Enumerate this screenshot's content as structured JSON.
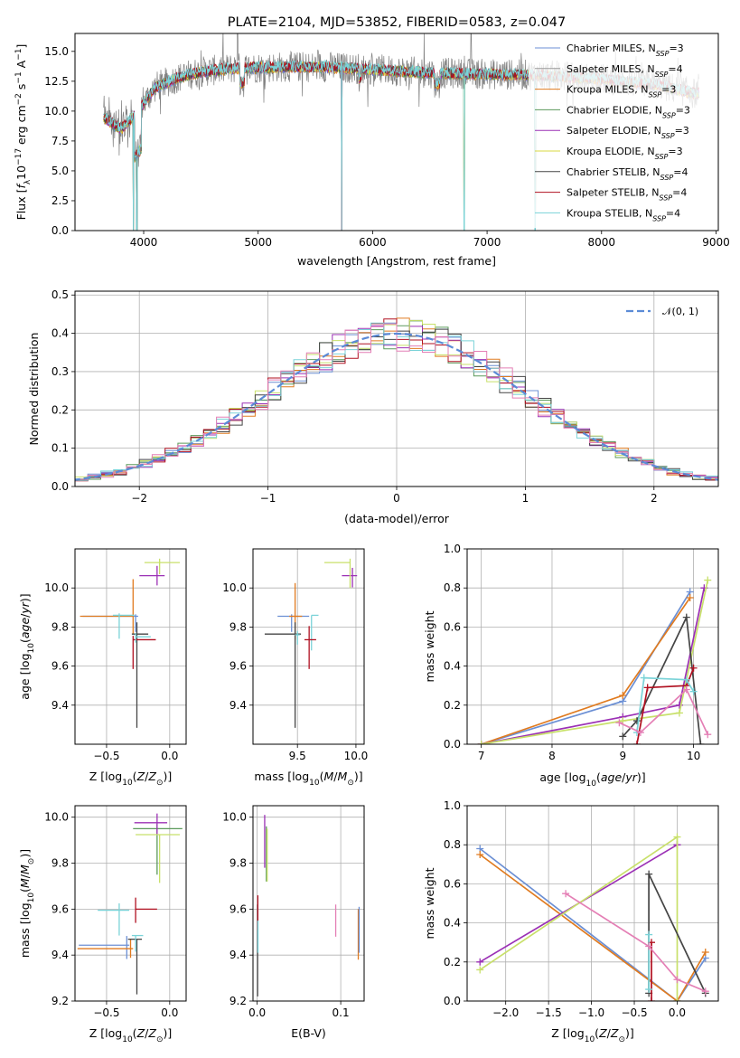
{
  "title": "PLATE=2104, MJD=53852, FIBERID=0583, z=0.047",
  "model_names": [
    "Chabrier MILES",
    "Salpeter MILES",
    "Kroupa MILES",
    "Chabrier ELODIE",
    "Salpeter ELODIE",
    "Kroupa ELODIE",
    "Chabrier STELIB",
    "Salpeter STELIB",
    "Kroupa STELIB"
  ],
  "colors": [
    "#6b8fd4",
    "#999999",
    "#e07b20",
    "#5b9a5b",
    "#9b30b5",
    "#d8d840",
    "#454545",
    "#b01020",
    "#7ad3d8"
  ],
  "hist_colors": [
    "#6b8fd4",
    "#e07b20",
    "#5b9a5b",
    "#9b30b5",
    "#c8e06a",
    "#454545",
    "#b01020",
    "#7ad3d8",
    "#e47fb5"
  ],
  "chart_data": [
    {
      "type": "line",
      "name": "spectrum",
      "xlabel": "wavelength [Angstrom, rest frame]",
      "ylabel": "Flux [f_λ 10^-17 erg cm^-2 s^-1 A^-1]",
      "xlim": [
        3400,
        9020
      ],
      "ylim": [
        0,
        16.5
      ],
      "xticks": [
        4000,
        5000,
        6000,
        7000,
        8000,
        9000
      ],
      "yticks": [
        "0.0",
        "2.5",
        "5.0",
        "7.5",
        "10.0",
        "12.5",
        "15.0"
      ],
      "legend_position": "top-right",
      "legend": [
        {
          "pre": "Chabrier MILES, N",
          "sub": "SSP",
          "post": "=3"
        },
        {
          "pre": "Salpeter MILES, N",
          "sub": "SSP",
          "post": "=4"
        },
        {
          "pre": "Kroupa MILES, N",
          "sub": "SSP",
          "post": "=3"
        },
        {
          "pre": "Chabrier ELODIE, N",
          "sub": "SSP",
          "post": "=3"
        },
        {
          "pre": "Salpeter ELODIE, N",
          "sub": "SSP",
          "post": "=3"
        },
        {
          "pre": "Kroupa ELODIE, N",
          "sub": "SSP",
          "post": "=3"
        },
        {
          "pre": "Chabrier STELIB, N",
          "sub": "SSP",
          "post": "=4"
        },
        {
          "pre": "Salpeter STELIB, N",
          "sub": "SSP",
          "post": "=4"
        },
        {
          "pre": "Kroupa STELIB, N",
          "sub": "SSP",
          "post": "=4"
        }
      ],
      "approx_continuum": {
        "x": [
          3650,
          3800,
          3950,
          4100,
          4300,
          4500,
          4800,
          5200,
          5600,
          6000,
          6500,
          7000,
          7500,
          8000,
          8500,
          8800
        ],
        "y": [
          9.5,
          8.5,
          10.0,
          12.0,
          12.8,
          13.3,
          13.6,
          13.7,
          13.7,
          13.5,
          13.2,
          13.1,
          13.0,
          12.7,
          12.2,
          11.5
        ]
      },
      "dropouts": [
        3910,
        3940,
        5730,
        6800,
        7420
      ]
    },
    {
      "type": "line",
      "name": "residual-distribution",
      "xlabel": "(data-model)/error",
      "ylabel": "Normed distribution",
      "xlim": [
        -2.5,
        2.5
      ],
      "ylim": [
        0,
        0.51
      ],
      "xticks": [
        "−2",
        "−1",
        "0",
        "1",
        "2"
      ],
      "yticks": [
        "0.0",
        "0.1",
        "0.2",
        "0.3",
        "0.4",
        "0.5"
      ],
      "legend": "𝒩(0, 1)",
      "legend_position": "top-right",
      "bin_width": 0.1,
      "grid": true
    },
    {
      "type": "scatter",
      "name": "age-vs-Z",
      "xlabel": "Z [log10(Z/Z⊙)]",
      "ylabel": "age [log10(age/yr)]",
      "xlim": [
        -0.75,
        0.13
      ],
      "ylim": [
        9.2,
        10.2
      ],
      "xticks": [
        "−0.5",
        "0.0"
      ],
      "yticks": [
        "9.4",
        "9.6",
        "9.8",
        "10.0"
      ],
      "grid": true,
      "crosses": [
        {
          "x": -0.27,
          "y": 9.855,
          "xl": 0.42,
          "xh": 0.02,
          "yl": 0.08,
          "yh": 0.01,
          "c": 0
        },
        {
          "x": -0.29,
          "y": 9.855,
          "xl": 0.42,
          "xh": 0.0,
          "yl": 0.09,
          "yh": 0.19,
          "c": 2
        },
        {
          "x": -0.4,
          "y": 9.86,
          "xl": 0.05,
          "xh": 0.12,
          "yl": 0.12,
          "yh": 0.01,
          "c": 8
        },
        {
          "x": -0.1,
          "y": 10.063,
          "xl": 0.14,
          "xh": 0.06,
          "yl": 0.05,
          "yh": 0.05,
          "c": 4
        },
        {
          "x": -0.08,
          "y": 10.13,
          "xl": 0.12,
          "xh": 0.16,
          "yl": 0.06,
          "yh": 0.02,
          "c": 5
        },
        {
          "x": -0.26,
          "y": 9.764,
          "xl": 0.04,
          "xh": 0.09,
          "yl": 0.48,
          "yh": 0.06,
          "c": 6
        },
        {
          "x": -0.29,
          "y": 9.735,
          "xl": 0.0,
          "xh": 0.18,
          "yl": 0.15,
          "yh": 0.02,
          "c": 7
        },
        {
          "x": -0.27,
          "y": 9.75,
          "xl": 0.0,
          "xh": 0.12,
          "yl": 0.03,
          "yh": 0.02,
          "c": 8
        }
      ]
    },
    {
      "type": "scatter",
      "name": "age-vs-mass",
      "xlabel": "mass [log10(M/M⊙)]",
      "ylabel": "",
      "xlim": [
        9.12,
        10.07
      ],
      "ylim": [
        9.2,
        10.2
      ],
      "xticks": [
        "9.5",
        "10.0"
      ],
      "yticks": [
        "9.4",
        "9.6",
        "9.8",
        "10.0"
      ],
      "grid": true,
      "crosses": [
        {
          "x": 9.45,
          "y": 9.855,
          "xl": 0.12,
          "xh": 0.15,
          "yl": 0.08,
          "yh": 0.01,
          "c": 0
        },
        {
          "x": 9.48,
          "y": 9.855,
          "xl": 0.05,
          "xh": 0.06,
          "yl": 0.12,
          "yh": 0.17,
          "c": 2
        },
        {
          "x": 9.62,
          "y": 9.86,
          "xl": 0.0,
          "xh": 0.06,
          "yl": 0.18,
          "yh": 0.0,
          "c": 8
        },
        {
          "x": 9.97,
          "y": 10.063,
          "xl": 0.09,
          "xh": 0.04,
          "yl": 0.06,
          "yh": 0.04,
          "c": 4
        },
        {
          "x": 9.95,
          "y": 10.13,
          "xl": 0.22,
          "xh": 0.0,
          "yl": 0.13,
          "yh": 0.02,
          "c": 5
        },
        {
          "x": 9.48,
          "y": 9.764,
          "xl": 0.26,
          "xh": 0.05,
          "yl": 0.48,
          "yh": 0.06,
          "c": 6
        },
        {
          "x": 9.6,
          "y": 9.735,
          "xl": 0.04,
          "xh": 0.06,
          "yl": 0.15,
          "yh": 0.07,
          "c": 7
        },
        {
          "x": 9.5,
          "y": 9.76,
          "xl": 0.02,
          "xh": 0.02,
          "yl": 0.05,
          "yh": 0.02,
          "c": 8
        }
      ]
    },
    {
      "type": "line",
      "name": "mass-weight-vs-age",
      "xlabel": "age [log10(age/yr)]",
      "ylabel": "mass weight",
      "xlim": [
        6.8,
        10.35
      ],
      "ylim": [
        0,
        1.0
      ],
      "xticks": [
        "7",
        "8",
        "9",
        "10"
      ],
      "yticks": [
        "0.0",
        "0.2",
        "0.4",
        "0.6",
        "0.8",
        "1.0"
      ],
      "grid": true,
      "series": [
        {
          "c": 0,
          "x": [
            7.0,
            9.0,
            9.95
          ],
          "y": [
            0.0,
            0.22,
            0.78
          ]
        },
        {
          "c": 2,
          "x": [
            7.0,
            9.0,
            9.95
          ],
          "y": [
            0.0,
            0.25,
            0.75
          ]
        },
        {
          "c": 4,
          "x": [
            7.0,
            9.0,
            9.8,
            10.15
          ],
          "y": [
            0.0,
            0.14,
            0.2,
            0.8
          ]
        },
        {
          "c": 5,
          "x": [
            7.0,
            9.0,
            9.8,
            10.2
          ],
          "y": [
            0.0,
            0.12,
            0.16,
            0.84
          ]
        },
        {
          "c": 6,
          "x": [
            9.0,
            9.2,
            9.9,
            10.1
          ],
          "y": [
            0.04,
            0.12,
            0.65,
            0.0
          ]
        },
        {
          "c": 7,
          "x": [
            9.2,
            9.35,
            9.9,
            10.0
          ],
          "y": [
            0.0,
            0.29,
            0.3,
            0.39
          ]
        },
        {
          "c": 8,
          "x": [
            9.2,
            9.3,
            9.9,
            10.0
          ],
          "y": [
            0.06,
            0.34,
            0.33,
            0.27
          ]
        },
        {
          "c": 9,
          "x": [
            8.95,
            9.25,
            9.9,
            10.2
          ],
          "y": [
            0.11,
            0.06,
            0.28,
            0.05
          ]
        }
      ]
    },
    {
      "type": "scatter",
      "name": "mass-vs-Z",
      "xlabel": "Z [log10(Z/Z⊙)]",
      "ylabel": "mass [log10(M/M⊙)]",
      "xlim": [
        -0.75,
        0.13
      ],
      "ylim": [
        9.2,
        10.05
      ],
      "xticks": [
        "−0.5",
        "0.0"
      ],
      "yticks": [
        "9.2",
        "9.4",
        "9.6",
        "9.8",
        "10.0"
      ],
      "grid": true,
      "crosses": [
        {
          "x": -0.34,
          "y": 9.443,
          "xl": 0.38,
          "xh": 0.02,
          "yl": 0.06,
          "yh": 0.04,
          "c": 0
        },
        {
          "x": -0.31,
          "y": 9.428,
          "xl": 0.42,
          "xh": 0.02,
          "yl": 0.04,
          "yh": 0.04,
          "c": 2
        },
        {
          "x": -0.1,
          "y": 9.95,
          "xl": 0.19,
          "xh": 0.2,
          "yl": 0.2,
          "yh": 0.02,
          "c": 3
        },
        {
          "x": -0.1,
          "y": 9.976,
          "xl": 0.18,
          "xh": 0.08,
          "yl": 0.05,
          "yh": 0.04,
          "c": 4
        },
        {
          "x": -0.08,
          "y": 9.924,
          "xl": 0.19,
          "xh": 0.16,
          "yl": 0.21,
          "yh": 0.0,
          "c": 5
        },
        {
          "x": -0.26,
          "y": 9.469,
          "xl": 0.07,
          "xh": 0.04,
          "yl": 0.24,
          "yh": 0.0,
          "c": 6
        },
        {
          "x": -0.27,
          "y": 9.6,
          "xl": 0.0,
          "xh": 0.17,
          "yl": 0.06,
          "yh": 0.05,
          "c": 7
        },
        {
          "x": -0.4,
          "y": 9.595,
          "xl": 0.17,
          "xh": 0.08,
          "yl": 0.11,
          "yh": 0.03,
          "c": 8
        },
        {
          "x": -0.27,
          "y": 9.485,
          "xl": 0.03,
          "xh": 0.06,
          "yl": 0.07,
          "yh": 0.0,
          "c": 8
        }
      ]
    },
    {
      "type": "scatter",
      "name": "mass-vs-EBV",
      "xlabel": "E(B-V)",
      "ylabel": "",
      "xlim": [
        -0.005,
        0.128
      ],
      "ylim": [
        9.2,
        10.05
      ],
      "xticks": [
        "0.0",
        "0.1"
      ],
      "yticks": [
        "9.2",
        "9.4",
        "9.6",
        "9.8",
        "10.0"
      ],
      "grid": true,
      "crosses": [
        {
          "x": 0.0005,
          "y": 9.42,
          "xl": 0.0,
          "xh": 0.0,
          "yl": 0.2,
          "yh": 0.2,
          "c": 6
        },
        {
          "x": 0.0008,
          "y": 9.58,
          "xl": 0.0,
          "xh": 0.0,
          "yl": 0.07,
          "yh": 0.08,
          "c": 7
        },
        {
          "x": 0.001,
          "y": 9.47,
          "xl": 0.0,
          "xh": 0.0,
          "yl": 0.06,
          "yh": 0.08,
          "c": 8
        },
        {
          "x": 0.009,
          "y": 9.88,
          "xl": 0.0,
          "xh": 0.0,
          "yl": 0.1,
          "yh": 0.13,
          "c": 4
        },
        {
          "x": 0.011,
          "y": 9.83,
          "xl": 0.0,
          "xh": 0.0,
          "yl": 0.11,
          "yh": 0.13,
          "c": 3
        },
        {
          "x": 0.012,
          "y": 9.82,
          "xl": 0.0,
          "xh": 0.0,
          "yl": 0.1,
          "yh": 0.13,
          "c": 5
        },
        {
          "x": 0.094,
          "y": 9.55,
          "xl": 0.0,
          "xh": 0.0,
          "yl": 0.07,
          "yh": 0.07,
          "c": 9
        },
        {
          "x": 0.121,
          "y": 9.5,
          "xl": 0.0,
          "xh": 0.0,
          "yl": 0.12,
          "yh": 0.1,
          "c": 2
        },
        {
          "x": 0.122,
          "y": 9.5,
          "xl": 0.0,
          "xh": 0.0,
          "yl": 0.09,
          "yh": 0.11,
          "c": 0
        }
      ]
    },
    {
      "type": "line",
      "name": "mass-weight-vs-Z",
      "xlabel": "Z [log10(Z/Z⊙)]",
      "ylabel": "mass weight",
      "xlim": [
        -2.45,
        0.48
      ],
      "ylim": [
        0,
        1.0
      ],
      "xticks": [
        "−2.0",
        "−1.5",
        "−1.0",
        "−0.5",
        "0.0"
      ],
      "yticks": [
        "0.0",
        "0.2",
        "0.4",
        "0.6",
        "0.8",
        "1.0"
      ],
      "grid": true,
      "series": [
        {
          "c": 0,
          "x": [
            -2.3,
            0.0,
            0.33
          ],
          "y": [
            0.78,
            0.0,
            0.22
          ]
        },
        {
          "c": 2,
          "x": [
            -2.3,
            0.0,
            0.33
          ],
          "y": [
            0.75,
            0.0,
            0.25
          ]
        },
        {
          "c": 4,
          "x": [
            -2.3,
            0.0,
            0.0
          ],
          "y": [
            0.2,
            0.8,
            0.8
          ]
        },
        {
          "c": 5,
          "x": [
            -2.3,
            0.0,
            0.0
          ],
          "y": [
            0.16,
            0.84,
            0.0
          ]
        },
        {
          "c": 6,
          "x": [
            -0.33,
            -0.33,
            0.33
          ],
          "y": [
            0.04,
            0.65,
            0.04
          ]
        },
        {
          "c": 7,
          "x": [
            -0.3,
            -0.3
          ],
          "y": [
            0.0,
            0.3
          ]
        },
        {
          "c": 8,
          "x": [
            -0.33,
            -0.33
          ],
          "y": [
            0.06,
            0.34
          ]
        },
        {
          "c": 9,
          "x": [
            -1.3,
            -0.33,
            0.0,
            0.33
          ],
          "y": [
            0.55,
            0.28,
            0.11,
            0.05
          ]
        }
      ]
    }
  ]
}
